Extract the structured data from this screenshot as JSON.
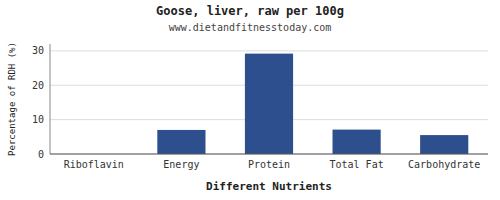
{
  "chart_data": {
    "type": "bar",
    "title": "Goose, liver, raw per 100g",
    "subtitle": "www.dietandfitnesstoday.com",
    "xlabel": "Different Nutrients",
    "ylabel": "Percentage of RDH (%)",
    "categories": [
      "Riboflavin",
      "Energy",
      "Protein",
      "Total Fat",
      "Carbohydrate"
    ],
    "values": [
      0.0,
      7.0,
      29.2,
      7.1,
      5.5
    ],
    "color": "#2d4f8e",
    "ylim": [
      0,
      32
    ],
    "yticks": [
      0,
      10,
      20,
      30
    ],
    "grid": true
  }
}
